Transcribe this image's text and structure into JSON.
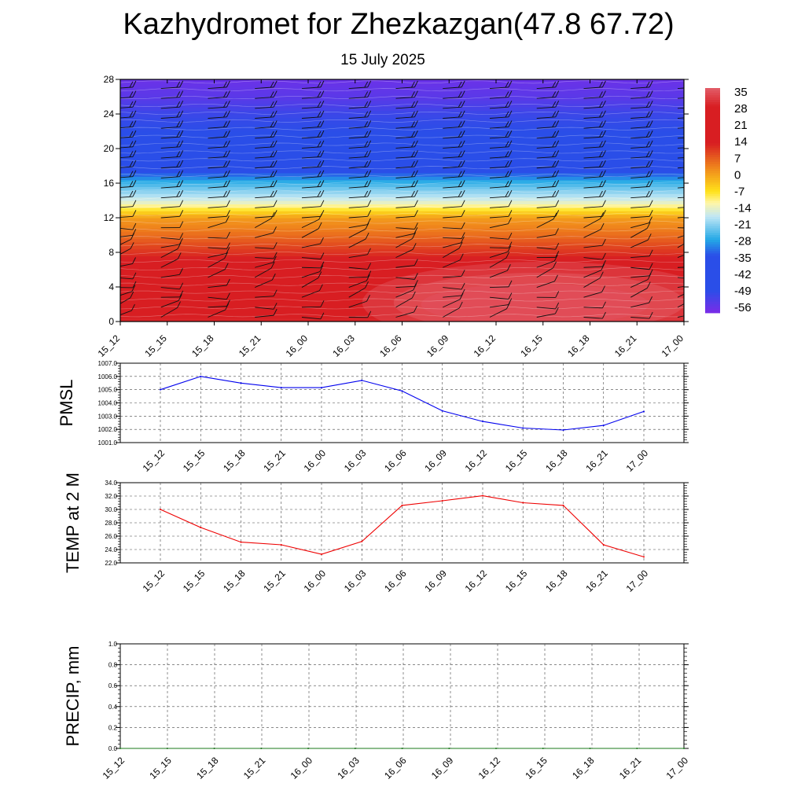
{
  "title": "Kazhydromet for Zhezkazgan(47.8 67.72)",
  "subtitle": "15 July 2025",
  "chart_data": [
    {
      "type": "heatmap",
      "name": "temperature-height cross section with wind barbs",
      "x_labels": [
        "15_12",
        "15_15",
        "15_18",
        "15_21",
        "16_00",
        "16_03",
        "16_06",
        "16_09",
        "16_12",
        "16_15",
        "16_18",
        "16_21",
        "17_00"
      ],
      "y_ticks": [
        0,
        4,
        8,
        12,
        16,
        20,
        24,
        28
      ],
      "ylim": [
        0,
        28
      ],
      "colorbar_labels": [
        35,
        28,
        21,
        14,
        7,
        0,
        -7,
        -14,
        -21,
        -28,
        -35,
        -42,
        -49,
        -56
      ],
      "colorbar_range": [
        -60,
        38
      ],
      "colors": {
        "warm_max": "#e25d68",
        "red": "#d81e22",
        "orange": "#f08a1c",
        "yellow": "#ffe21a",
        "light_blue": "#bfe6f5",
        "cyan": "#23a8e6",
        "blue": "#2a4ee8",
        "violet": "#7b2be8"
      },
      "temp_profile_levels": [
        0,
        2,
        4,
        6,
        8,
        10,
        12,
        13,
        14,
        16,
        18,
        20,
        22,
        24,
        26,
        28
      ],
      "temp_profile_values": [
        31,
        28,
        24,
        18,
        12,
        6,
        1,
        -8,
        -16,
        -26,
        -40,
        -48,
        -50,
        -52,
        -56,
        -58
      ],
      "warm_core": {
        "x_center_label": "16_15",
        "level": 2,
        "max": 36
      }
    },
    {
      "type": "line",
      "ylabel": "PMSL",
      "x": [
        "15_12",
        "15_15",
        "15_18",
        "15_21",
        "16_00",
        "16_03",
        "16_06",
        "16_09",
        "16_12",
        "16_15",
        "16_18",
        "16_21",
        "17_00"
      ],
      "values": [
        1005.0,
        1006.0,
        1005.5,
        1005.15,
        1005.15,
        1005.7,
        1004.9,
        1003.4,
        1002.6,
        1002.1,
        1001.95,
        1002.3,
        1003.35
      ],
      "ylim": [
        1001.0,
        1007.0
      ],
      "y_ticks": [
        "1001.0",
        "1002.0",
        "1003.0",
        "1004.0",
        "1005.0",
        "1006.0",
        "1007.0"
      ],
      "color": "#0000ee"
    },
    {
      "type": "line",
      "ylabel": "TEMP at 2 M",
      "x": [
        "15_12",
        "15_15",
        "15_18",
        "15_21",
        "16_00",
        "16_03",
        "16_06",
        "16_09",
        "16_12",
        "16_15",
        "16_18",
        "16_21",
        "17_00"
      ],
      "values": [
        30.0,
        27.3,
        25.1,
        24.7,
        23.3,
        25.2,
        30.6,
        31.3,
        32.05,
        31.0,
        30.6,
        24.7,
        22.9
      ],
      "ylim": [
        22.0,
        34.0
      ],
      "y_ticks": [
        "22.0",
        "24.0",
        "26.0",
        "28.0",
        "30.0",
        "32.0",
        "34.0"
      ],
      "color": "#ee0000"
    },
    {
      "type": "line",
      "ylabel": "PRECIP, mm",
      "x_labels": [
        "15_12",
        "15_15",
        "15_18",
        "15_21",
        "16_00",
        "16_03",
        "16_06",
        "16_09",
        "16_12",
        "16_15",
        "16_18",
        "16_21",
        "17_00"
      ],
      "values": [
        0,
        0,
        0,
        0,
        0,
        0,
        0,
        0,
        0,
        0,
        0,
        0,
        0
      ],
      "ylim": [
        0.0,
        1.0
      ],
      "y_ticks": [
        "0.0",
        "0.2",
        "0.4",
        "0.6",
        "0.8",
        "1.0"
      ],
      "color": "#1a7a1a"
    }
  ]
}
